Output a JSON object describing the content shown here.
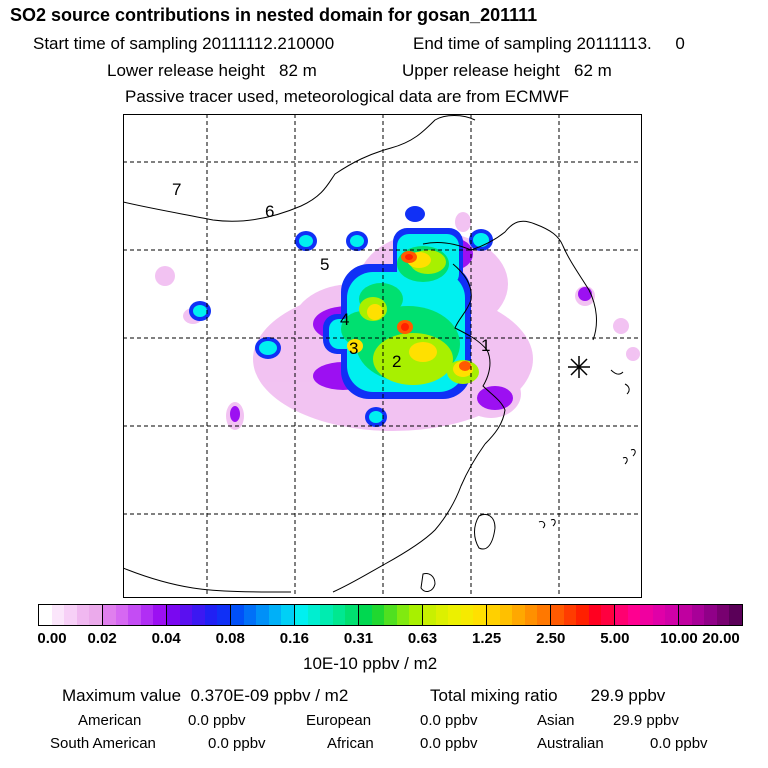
{
  "header": {
    "title": "SO2 source contributions in nested domain for gosan_201111",
    "start_label": "Start time of sampling 20111112.210000",
    "end_label": "End time of sampling 20111113.     0",
    "lower_label": "Lower release height   82 m",
    "upper_label": "Upper release height   62 m",
    "tracer_label": "Passive tracer used, meteorological data are from ECMWF"
  },
  "map": {
    "region_labels": [
      "7",
      "6",
      "5",
      "4",
      "3",
      "2",
      "1"
    ],
    "receptor": "gosan"
  },
  "colorbar": {
    "ticks": [
      "0.00",
      "0.02",
      "0.04",
      "0.08",
      "0.16",
      "0.31",
      "0.63",
      "1.25",
      "2.50",
      "5.00",
      "10.00",
      "20.00"
    ],
    "units": "10E-10 ppbv / m2",
    "colors": [
      [
        "#ffffff",
        "#fbe6fb",
        "#f7d0f7",
        "#f0b8f0",
        "#ebaaeb"
      ],
      [
        "#e07fee",
        "#d668f2",
        "#c44cf4",
        "#b12ef4",
        "#9c10f2"
      ],
      [
        "#7a08f0",
        "#5a10f0",
        "#3c18f2",
        "#2020f4",
        "#1030f6"
      ],
      [
        "#0050f8",
        "#0070f8",
        "#0090f8",
        "#00b0f8",
        "#00d0f6"
      ],
      [
        "#00f0f0",
        "#00eed0",
        "#00ecb0",
        "#00e890",
        "#00e070"
      ],
      [
        "#00d850",
        "#20d830",
        "#50e020",
        "#80ea10",
        "#a8f000"
      ],
      [
        "#c8f000",
        "#dcf000",
        "#ecf000",
        "#f6ea00",
        "#ffe000"
      ],
      [
        "#ffd000",
        "#ffc000",
        "#ffa800",
        "#ff9000",
        "#ff7800"
      ],
      [
        "#ff5a00",
        "#ff3c00",
        "#ff2000",
        "#ff0020",
        "#ff0040"
      ],
      [
        "#ff0070",
        "#ff0090",
        "#f000a0",
        "#e000a8",
        "#d000a8"
      ],
      [
        "#c000a0",
        "#a80098",
        "#900088",
        "#780070",
        "#5a0058"
      ]
    ]
  },
  "summary": {
    "max_value": "Maximum value  0.370E-09 ppbv / m2",
    "total_mixing": "Total mixing ratio       29.9 ppbv",
    "american_label": "American",
    "american_value": "0.0 ppbv",
    "european_label": "European",
    "european_value": "0.0 ppbv",
    "asian_label": "Asian",
    "asian_value": "29.9 ppbv",
    "south_american_label": "South American",
    "south_american_value": "0.0 ppbv",
    "african_label": "African",
    "african_value": "0.0 ppbv",
    "australian_label": "Australian",
    "australian_value": "0.0 ppbv"
  }
}
